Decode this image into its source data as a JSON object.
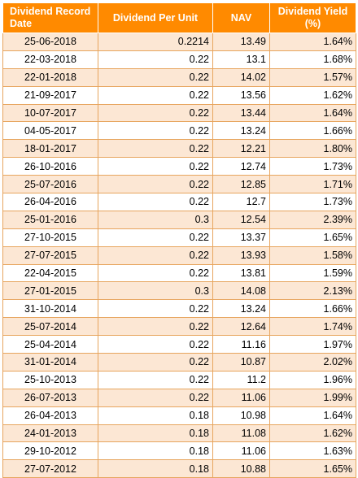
{
  "table": {
    "headers": {
      "record_date": "Dividend Record Date",
      "dividend_per_unit": "Dividend Per Unit",
      "nav": "NAV",
      "dividend_yield": "Dividend Yield (%)"
    },
    "rows": [
      {
        "date": "25-06-2018",
        "dividend": "0.2214",
        "nav": "13.49",
        "yield": "1.64%"
      },
      {
        "date": "22-03-2018",
        "dividend": "0.22",
        "nav": "13.1",
        "yield": "1.68%"
      },
      {
        "date": "22-01-2018",
        "dividend": "0.22",
        "nav": "14.02",
        "yield": "1.57%"
      },
      {
        "date": "21-09-2017",
        "dividend": "0.22",
        "nav": "13.56",
        "yield": "1.62%"
      },
      {
        "date": "10-07-2017",
        "dividend": "0.22",
        "nav": "13.44",
        "yield": "1.64%"
      },
      {
        "date": "04-05-2017",
        "dividend": "0.22",
        "nav": "13.24",
        "yield": "1.66%"
      },
      {
        "date": "18-01-2017",
        "dividend": "0.22",
        "nav": "12.21",
        "yield": "1.80%"
      },
      {
        "date": "26-10-2016",
        "dividend": "0.22",
        "nav": "12.74",
        "yield": "1.73%"
      },
      {
        "date": "25-07-2016",
        "dividend": "0.22",
        "nav": "12.85",
        "yield": "1.71%"
      },
      {
        "date": "26-04-2016",
        "dividend": "0.22",
        "nav": "12.7",
        "yield": "1.73%"
      },
      {
        "date": "25-01-2016",
        "dividend": "0.3",
        "nav": "12.54",
        "yield": "2.39%"
      },
      {
        "date": "27-10-2015",
        "dividend": "0.22",
        "nav": "13.37",
        "yield": "1.65%"
      },
      {
        "date": "27-07-2015",
        "dividend": "0.22",
        "nav": "13.93",
        "yield": "1.58%"
      },
      {
        "date": "22-04-2015",
        "dividend": "0.22",
        "nav": "13.81",
        "yield": "1.59%"
      },
      {
        "date": "27-01-2015",
        "dividend": "0.3",
        "nav": "14.08",
        "yield": "2.13%"
      },
      {
        "date": "31-10-2014",
        "dividend": "0.22",
        "nav": "13.24",
        "yield": "1.66%"
      },
      {
        "date": "25-07-2014",
        "dividend": "0.22",
        "nav": "12.64",
        "yield": "1.74%"
      },
      {
        "date": "25-04-2014",
        "dividend": "0.22",
        "nav": "11.16",
        "yield": "1.97%"
      },
      {
        "date": "31-01-2014",
        "dividend": "0.22",
        "nav": "10.87",
        "yield": "2.02%"
      },
      {
        "date": "25-10-2013",
        "dividend": "0.22",
        "nav": "11.2",
        "yield": "1.96%"
      },
      {
        "date": "26-07-2013",
        "dividend": "0.22",
        "nav": "11.06",
        "yield": "1.99%"
      },
      {
        "date": "26-04-2013",
        "dividend": "0.18",
        "nav": "10.98",
        "yield": "1.64%"
      },
      {
        "date": "24-01-2013",
        "dividend": "0.18",
        "nav": "11.08",
        "yield": "1.62%"
      },
      {
        "date": "29-10-2012",
        "dividend": "0.18",
        "nav": "11.06",
        "yield": "1.63%"
      },
      {
        "date": "27-07-2012",
        "dividend": "0.18",
        "nav": "10.88",
        "yield": "1.65%"
      }
    ]
  },
  "colors": {
    "header_bg": "#ff8a00",
    "header_text": "#ffffff",
    "stripe_bg": "#fce7d4",
    "border": "#e7a55e"
  }
}
